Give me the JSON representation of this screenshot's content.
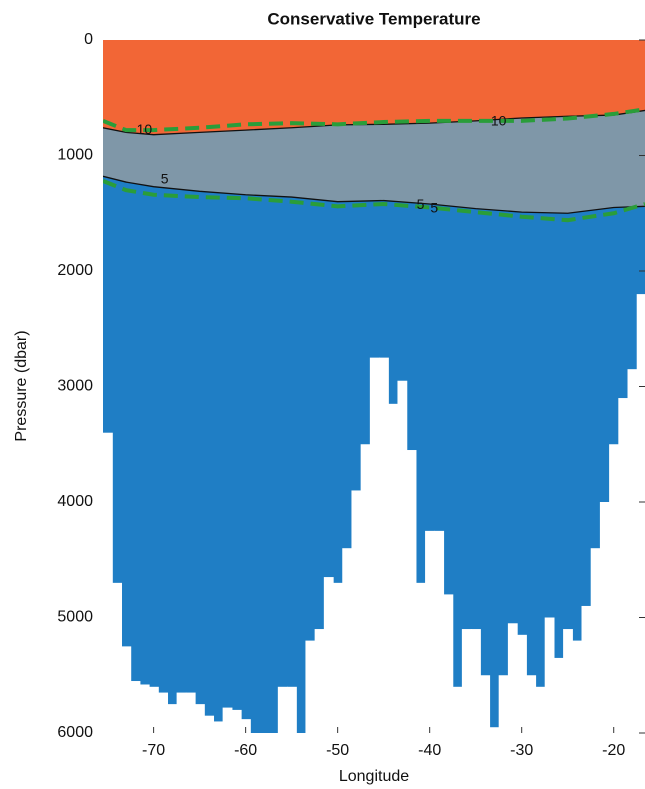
{
  "chart_data": {
    "type": "section",
    "title": "Conservative Temperature",
    "xlabel": "Longitude",
    "ylabel": "Pressure (dbar)",
    "xlim": [
      -75.5,
      -16.6
    ],
    "ylim": [
      0,
      6000
    ],
    "y_reversed": true,
    "xticks": [
      -70,
      -60,
      -50,
      -40,
      -30,
      -20
    ],
    "yticks": [
      0,
      1000,
      2000,
      3000,
      4000,
      5000,
      6000
    ],
    "fill_colors": [
      "#f26636",
      "#7f97a8",
      "#1f7ec5"
    ],
    "contours": [
      {
        "color": "#111111",
        "x": [
          -75.5,
          -73,
          -70,
          -65,
          -60,
          -55,
          -50,
          -45,
          -40,
          -35,
          -30,
          -25,
          -20,
          -16.6
        ],
        "values": [
          760,
          800,
          820,
          800,
          780,
          760,
          735,
          730,
          720,
          700,
          675,
          660,
          650,
          610
        ]
      },
      {
        "color": "#111111",
        "x": [
          -75.5,
          -73,
          -70,
          -65,
          -60,
          -55,
          -50,
          -45,
          -40,
          -35,
          -30,
          -25,
          -20,
          -16.6
        ],
        "values": [
          1180,
          1230,
          1270,
          1310,
          1340,
          1360,
          1400,
          1390,
          1420,
          1460,
          1490,
          1500,
          1450,
          1440
        ]
      }
    ],
    "estimates": [
      {
        "color": "#2a9d3a",
        "x": [
          -75.5,
          -73,
          -70,
          -65,
          -60,
          -55,
          -50,
          -45,
          -40,
          -35,
          -30,
          -25,
          -20,
          -16.6
        ],
        "values": [
          700,
          780,
          780,
          760,
          730,
          720,
          730,
          710,
          700,
          700,
          700,
          680,
          640,
          600
        ]
      },
      {
        "color": "#2a9d3a",
        "x": [
          -75.5,
          -73,
          -70,
          -65,
          -60,
          -55,
          -50,
          -45,
          -40,
          -35,
          -30,
          -25,
          -20,
          -16.6
        ],
        "values": [
          1220,
          1300,
          1340,
          1360,
          1370,
          1400,
          1440,
          1420,
          1450,
          1490,
          1530,
          1560,
          1500,
          1420
        ]
      }
    ],
    "contour_labels": [
      {
        "text": "10",
        "x": -71,
        "y": 780
      },
      {
        "text": "10",
        "x": -32.5,
        "y": 710
      },
      {
        "text": "5",
        "x": -68.8,
        "y": 1210
      },
      {
        "text": "5",
        "x": -41,
        "y": 1430
      },
      {
        "text": "5",
        "x": -39.5,
        "y": 1460
      }
    ],
    "bathymetry": {
      "color": "#ffffff",
      "x": [
        -75,
        -74,
        -73,
        -72,
        -71,
        -70,
        -69,
        -68,
        -67,
        -66,
        -65,
        -64,
        -63,
        -62,
        -61,
        -60,
        -59,
        -58,
        -57,
        -56,
        -55,
        -54,
        -53,
        -52,
        -51,
        -50,
        -49,
        -48,
        -47,
        -46,
        -45,
        -44,
        -43,
        -42,
        -41,
        -40,
        -39,
        -38,
        -37,
        -36,
        -35,
        -34,
        -33,
        -32,
        -31,
        -30,
        -29,
        -28,
        -27,
        -26,
        -25,
        -24,
        -23,
        -22,
        -21,
        -20,
        -19,
        -18,
        -17
      ],
      "values": [
        3400,
        4700,
        5250,
        5550,
        5580,
        5600,
        5650,
        5750,
        5650,
        5650,
        5750,
        5850,
        5900,
        5780,
        5800,
        5880,
        6000,
        6000,
        6000,
        5600,
        5600,
        6000,
        5200,
        5100,
        4650,
        4700,
        4400,
        3900,
        3500,
        2750,
        2750,
        3150,
        2950,
        3550,
        4700,
        4250,
        4250,
        4800,
        5600,
        5100,
        5100,
        5500,
        5950,
        5500,
        5050,
        5150,
        5500,
        5600,
        5000,
        5350,
        5100,
        5200,
        4900,
        4400,
        4000,
        3500,
        3100,
        2850,
        2200
      ]
    }
  }
}
